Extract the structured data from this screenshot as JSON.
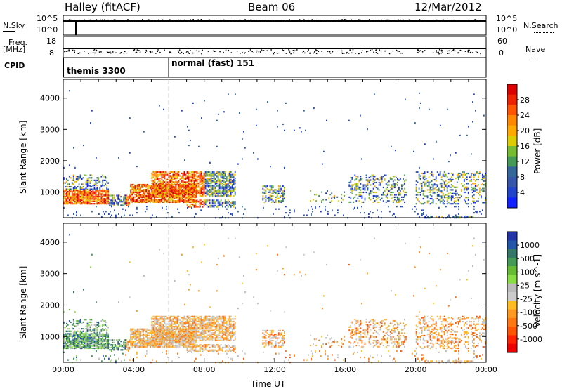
{
  "header": {
    "left_title": "Halley (fitACF)",
    "center_title": "Beam 06",
    "right_title": "12/Mar/2012"
  },
  "status_panels": {
    "nsky_label": "N.Sky",
    "nsearch_label": "N.Search",
    "nsky_ticks": [
      "10^5",
      "10^0"
    ],
    "nsearch_ticks": [
      "10^5",
      "10^0"
    ],
    "freq_label": "Freq.",
    "freq_unit": "[MHz]",
    "freq_ticks": [
      "18",
      "8"
    ],
    "nave_label": "Nave",
    "nave_ticks": [
      "60",
      "0"
    ],
    "cpid_label": "CPID",
    "cpid_modes": [
      {
        "label": "themis 3300",
        "start_hour": 0
      },
      {
        "label": "normal (fast) 151",
        "start_hour": 6
      }
    ]
  },
  "chart_data": [
    {
      "type": "heatmap",
      "name": "power",
      "ylabel": "Slant Range [km]",
      "xlabel": "",
      "x_range_hours": [
        0,
        24
      ],
      "ylim": [
        180,
        4600
      ],
      "yticks": [
        1000,
        2000,
        3000,
        4000
      ],
      "colorbar_label": "Power [dB]",
      "colorbar_ticks": [
        "28",
        "24",
        "20",
        "16",
        "12",
        "8",
        "4"
      ],
      "colorbar_colors": [
        "#dd0000",
        "#ee2200",
        "#ff5500",
        "#ff8800",
        "#ffaa00",
        "#ddcc00",
        "#77bb33",
        "#449955",
        "#336699",
        "#3355aa",
        "#2244cc",
        "#1122ff"
      ]
    },
    {
      "type": "heatmap",
      "name": "velocity",
      "ylabel": "Slant Range [km]",
      "xlabel": "Time UT",
      "x_range_hours": [
        0,
        24
      ],
      "ylim": [
        180,
        4600
      ],
      "yticks": [
        1000,
        2000,
        3000,
        4000
      ],
      "xticks": [
        "00:00",
        "04:00",
        "08:00",
        "12:00",
        "16:00",
        "20:00",
        "00:00"
      ],
      "colorbar_label": "Velocity [m s^-1]",
      "colorbar_ticks": [
        "1000",
        "500",
        "100",
        "25",
        "-25",
        "-100",
        "-500",
        "-1000"
      ],
      "colorbar_colors": [
        "#2233aa",
        "#2255aa",
        "#337766",
        "#449955",
        "#66bb33",
        "#88dd44",
        "#bbbbbb",
        "#cccccc",
        "#ffbb22",
        "#ff9922",
        "#ff7711",
        "#ff5500",
        "#ff2200",
        "#ee0000"
      ]
    }
  ]
}
